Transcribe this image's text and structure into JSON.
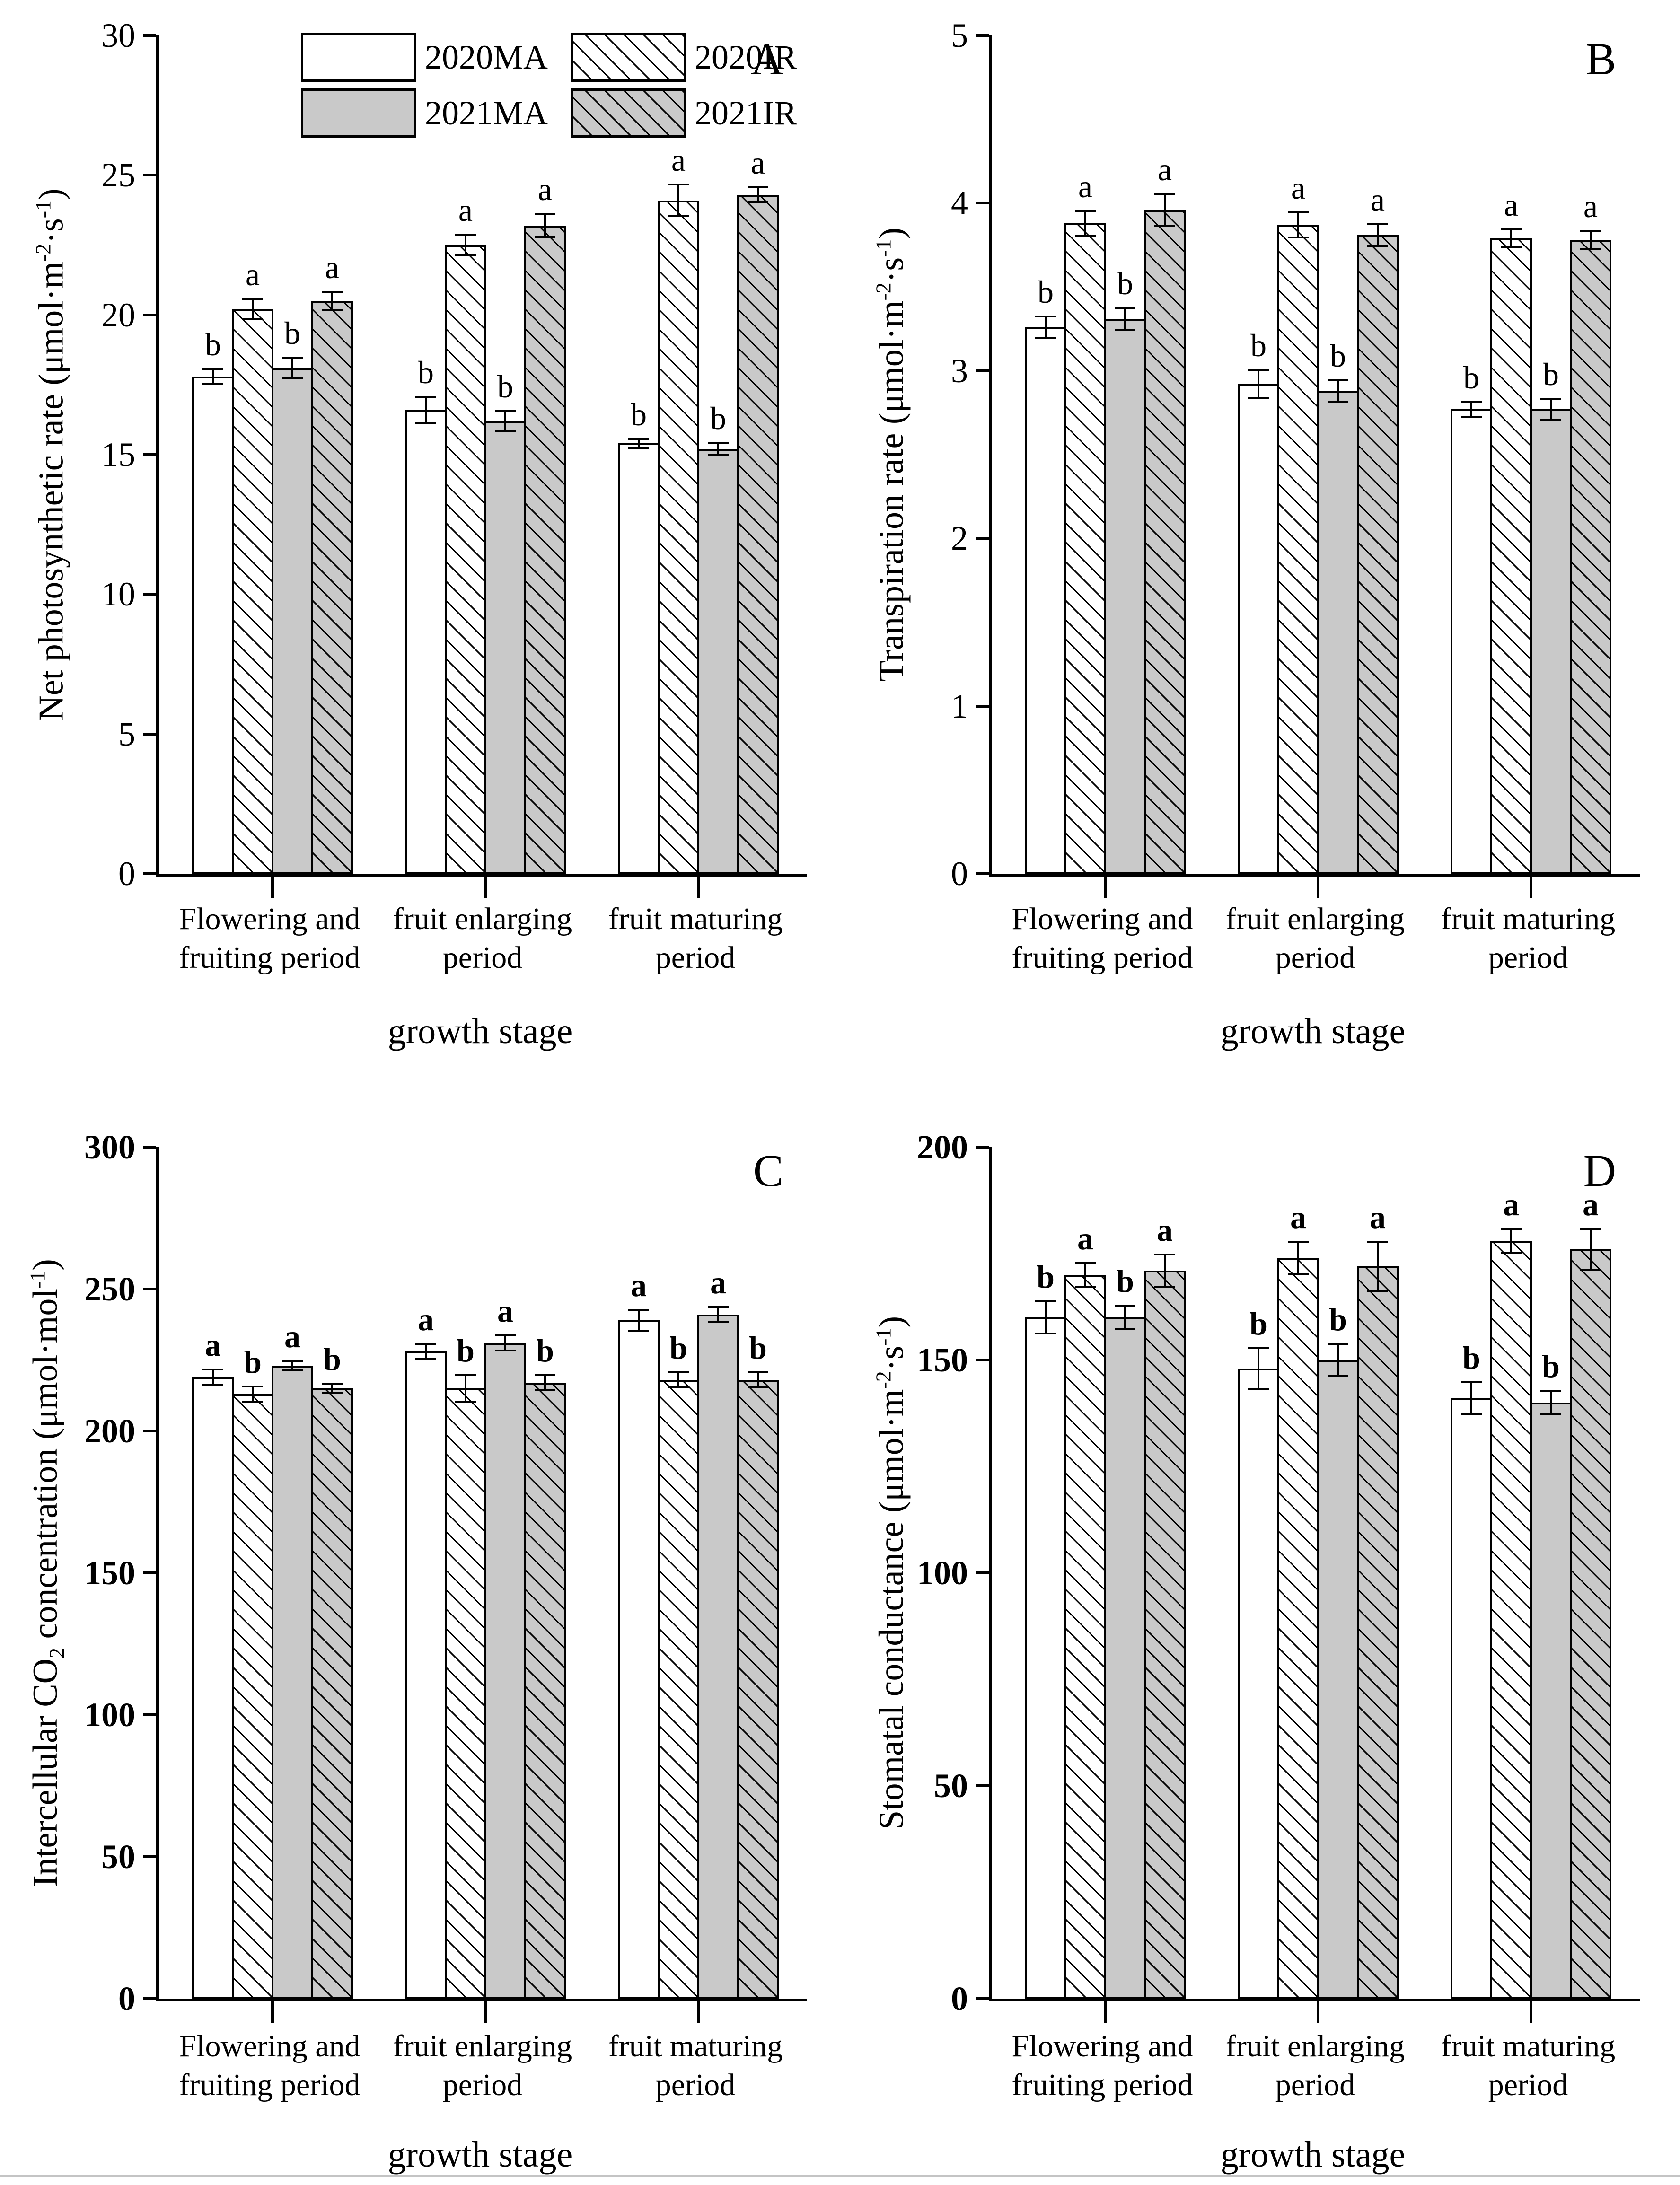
{
  "colors": {
    "background": "#ffffff",
    "axis": "#000000",
    "bar_gray_fill": "#c9c9c9",
    "bar_white_fill": "#ffffff",
    "hatch_line": "#000000",
    "bottom_rule": "#c4c4c4"
  },
  "legend": {
    "entries": [
      {
        "label": "2020MA",
        "pattern": "plain-white"
      },
      {
        "label": "2020IR",
        "pattern": "hatch-white"
      },
      {
        "label": "2021MA",
        "pattern": "plain-gray"
      },
      {
        "label": "2021IR",
        "pattern": "hatch-gray"
      }
    ]
  },
  "chart_data": [
    {
      "type": "bar",
      "panel": "A",
      "ylabel_text": "Net photosynthetic rate (umol.m-2.s-1)",
      "ylabel_segments": [
        {
          "t": "Net photosynthetic rate (μmol·m"
        },
        {
          "t": "-2",
          "sup": true
        },
        {
          "t": "·s"
        },
        {
          "t": "-1",
          "sup": true
        },
        {
          "t": ")"
        }
      ],
      "xlabel": "growth stage",
      "ylim": [
        0,
        30
      ],
      "yticks": [
        0,
        5,
        10,
        15,
        20,
        25,
        30
      ],
      "grid": false,
      "legend_position": "top-left-inside",
      "bold_axis": false,
      "categories": [
        "Flowering and fruiting period",
        "fruit enlarging period",
        "fruit maturing period"
      ],
      "category_lines": [
        [
          "Flowering and",
          "fruiting period"
        ],
        [
          "fruit enlarging",
          "period"
        ],
        [
          "fruit maturing",
          "period"
        ]
      ],
      "series": [
        {
          "name": "2020MA",
          "pattern": "plain-white",
          "values": [
            17.8,
            16.6,
            15.4
          ],
          "errors": [
            0.3,
            0.5,
            0.2
          ],
          "letters": [
            "b",
            "b",
            "b"
          ]
        },
        {
          "name": "2020IR",
          "pattern": "hatch-white",
          "values": [
            20.2,
            22.5,
            24.1
          ],
          "errors": [
            0.4,
            0.4,
            0.6
          ],
          "letters": [
            "a",
            "a",
            "a"
          ]
        },
        {
          "name": "2021MA",
          "pattern": "plain-gray",
          "values": [
            18.1,
            16.2,
            15.2
          ],
          "errors": [
            0.4,
            0.4,
            0.25
          ],
          "letters": [
            "b",
            "b",
            "b"
          ]
        },
        {
          "name": "2021IR",
          "pattern": "hatch-gray",
          "values": [
            20.5,
            23.2,
            24.3
          ],
          "errors": [
            0.35,
            0.45,
            0.3
          ],
          "letters": [
            "a",
            "a",
            "a"
          ]
        }
      ]
    },
    {
      "type": "bar",
      "panel": "B",
      "ylabel_text": "Transpiration rate (umol.m-2.s-1)",
      "ylabel_segments": [
        {
          "t": "Transpiration rate (μmol·m"
        },
        {
          "t": "-2",
          "sup": true
        },
        {
          "t": "·s"
        },
        {
          "t": "-1",
          "sup": true
        },
        {
          "t": ")"
        }
      ],
      "xlabel": "growth stage",
      "ylim": [
        0,
        5
      ],
      "yticks": [
        0,
        1,
        2,
        3,
        4,
        5
      ],
      "grid": false,
      "legend_position": "none",
      "bold_axis": false,
      "categories": [
        "Flowering and fruiting period",
        "fruit enlarging period",
        "fruit maturing period"
      ],
      "category_lines": [
        [
          "Flowering and",
          "fruiting period"
        ],
        [
          "fruit enlarging",
          "period"
        ],
        [
          "fruit maturing",
          "period"
        ]
      ],
      "series": [
        {
          "name": "2020MA",
          "pattern": "plain-white",
          "values": [
            3.26,
            2.92,
            2.77
          ],
          "errors": [
            0.07,
            0.09,
            0.05
          ],
          "letters": [
            "b",
            "b",
            "b"
          ]
        },
        {
          "name": "2020IR",
          "pattern": "hatch-white",
          "values": [
            3.88,
            3.87,
            3.79
          ],
          "errors": [
            0.08,
            0.08,
            0.06
          ],
          "letters": [
            "a",
            "a",
            "a"
          ]
        },
        {
          "name": "2021MA",
          "pattern": "plain-gray",
          "values": [
            3.31,
            2.88,
            2.77
          ],
          "errors": [
            0.07,
            0.07,
            0.07
          ],
          "letters": [
            "b",
            "b",
            "b"
          ]
        },
        {
          "name": "2021IR",
          "pattern": "hatch-gray",
          "values": [
            3.96,
            3.81,
            3.78
          ],
          "errors": [
            0.1,
            0.07,
            0.06
          ],
          "letters": [
            "a",
            "a",
            "a"
          ]
        }
      ]
    },
    {
      "type": "bar",
      "panel": "C",
      "ylabel_text": "Intercellular CO2 concentration (umol.mol-1)",
      "ylabel_segments": [
        {
          "t": "Intercellular CO"
        },
        {
          "t": "2",
          "sub": true
        },
        {
          "t": " concentration (μmol·mol"
        },
        {
          "t": "-1",
          "sup": true
        },
        {
          "t": ")"
        }
      ],
      "xlabel": "growth stage",
      "ylim": [
        0,
        300
      ],
      "yticks": [
        0,
        50,
        100,
        150,
        200,
        250,
        300
      ],
      "grid": false,
      "legend_position": "none",
      "bold_axis": true,
      "categories": [
        "Flowering and fruiting period",
        "fruit enlarging period",
        "fruit maturing period"
      ],
      "category_lines": [
        [
          "Flowering and",
          "fruiting period"
        ],
        [
          "fruit enlarging",
          "period"
        ],
        [
          "fruit maturing",
          "period"
        ]
      ],
      "series": [
        {
          "name": "2020MA",
          "pattern": "plain-white",
          "values": [
            219,
            228,
            239
          ],
          "errors": [
            3,
            3,
            4
          ],
          "letters": [
            "a",
            "a",
            "a"
          ]
        },
        {
          "name": "2020IR",
          "pattern": "hatch-white",
          "values": [
            213,
            215,
            218
          ],
          "errors": [
            3,
            5,
            3
          ],
          "letters": [
            "b",
            "b",
            "b"
          ]
        },
        {
          "name": "2021MA",
          "pattern": "plain-gray",
          "values": [
            223,
            231,
            241
          ],
          "errors": [
            2,
            3,
            3
          ],
          "letters": [
            "a",
            "a",
            "a"
          ]
        },
        {
          "name": "2021IR",
          "pattern": "hatch-gray",
          "values": [
            215,
            217,
            218
          ],
          "errors": [
            2,
            3,
            3
          ],
          "letters": [
            "b",
            "b",
            "b"
          ]
        }
      ]
    },
    {
      "type": "bar",
      "panel": "D",
      "ylabel_text": "Stomatal conductance (umol.m-2.s-1)",
      "ylabel_segments": [
        {
          "t": "Stomatal conductance (μmol·m"
        },
        {
          "t": "-2",
          "sup": true
        },
        {
          "t": "·s"
        },
        {
          "t": "-1",
          "sup": true
        },
        {
          "t": ")"
        }
      ],
      "xlabel": "growth stage",
      "ylim": [
        0,
        200
      ],
      "yticks": [
        0,
        50,
        100,
        150,
        200
      ],
      "grid": false,
      "legend_position": "none",
      "bold_axis": true,
      "categories": [
        "Flowering and fruiting period",
        "fruit enlarging period",
        "fruit maturing period"
      ],
      "category_lines": [
        [
          "Flowering and",
          "fruiting period"
        ],
        [
          "fruit enlarging",
          "period"
        ],
        [
          "fruit maturing",
          "period"
        ]
      ],
      "series": [
        {
          "name": "2020MA",
          "pattern": "plain-white",
          "values": [
            160,
            148,
            141
          ],
          "errors": [
            4,
            5,
            4
          ],
          "letters": [
            "b",
            "b",
            "b"
          ]
        },
        {
          "name": "2020IR",
          "pattern": "hatch-white",
          "values": [
            170,
            174,
            178
          ],
          "errors": [
            3,
            4,
            3
          ],
          "letters": [
            "a",
            "a",
            "a"
          ]
        },
        {
          "name": "2021MA",
          "pattern": "plain-gray",
          "values": [
            160,
            150,
            140
          ],
          "errors": [
            3,
            4,
            3
          ],
          "letters": [
            "b",
            "b",
            "b"
          ]
        },
        {
          "name": "2021IR",
          "pattern": "hatch-gray",
          "values": [
            171,
            172,
            176
          ],
          "errors": [
            4,
            6,
            5
          ],
          "letters": [
            "a",
            "a",
            "a"
          ]
        }
      ]
    }
  ]
}
